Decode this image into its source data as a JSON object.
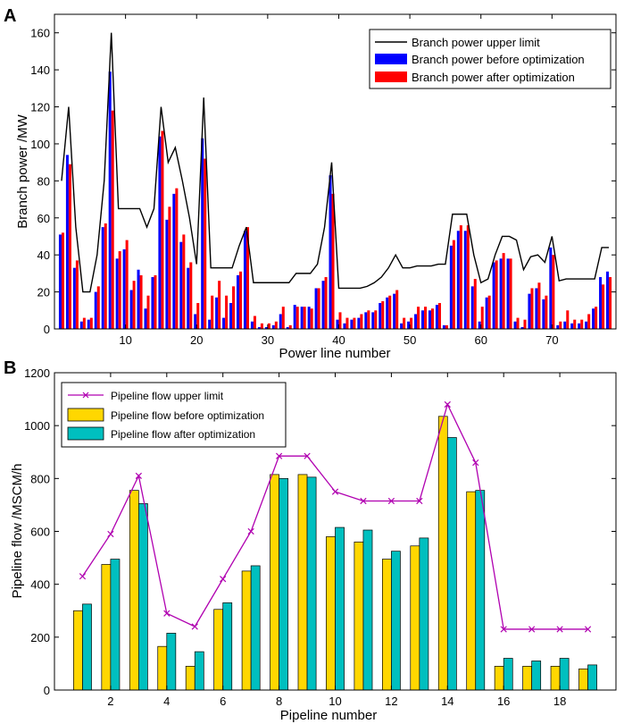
{
  "chart_data": [
    {
      "panel_label": "A",
      "type": "bar+line",
      "title": "",
      "xlabel": "Power line number",
      "ylabel": "Branch power /MW",
      "xlim": [
        0,
        79
      ],
      "ylim": [
        0,
        170
      ],
      "xticks": [
        10,
        20,
        30,
        40,
        50,
        60,
        70
      ],
      "yticks": [
        0,
        20,
        40,
        60,
        80,
        100,
        120,
        140,
        160
      ],
      "grid": false,
      "legend_position": "top-right",
      "legend": [
        {
          "label": "Branch power upper limit",
          "kind": "line",
          "color": "#000000"
        },
        {
          "label": "Branch power before optimization",
          "kind": "bar",
          "color": "#0000ff"
        },
        {
          "label": "Branch power after optimization",
          "kind": "bar",
          "color": "#ff0000"
        }
      ],
      "x": [
        1,
        2,
        3,
        4,
        5,
        6,
        7,
        8,
        9,
        10,
        11,
        12,
        13,
        14,
        15,
        16,
        17,
        18,
        19,
        20,
        21,
        22,
        23,
        24,
        25,
        26,
        27,
        28,
        29,
        30,
        31,
        32,
        33,
        34,
        35,
        36,
        37,
        38,
        39,
        40,
        41,
        42,
        43,
        44,
        45,
        46,
        47,
        48,
        49,
        50,
        51,
        52,
        53,
        54,
        55,
        56,
        57,
        58,
        59,
        60,
        61,
        62,
        63,
        64,
        65,
        66,
        67,
        68,
        69,
        70,
        71,
        72,
        73,
        74,
        75,
        76,
        77,
        78
      ],
      "series": [
        {
          "name": "Branch power upper limit",
          "kind": "line",
          "color": "#000000",
          "values": [
            80,
            120,
            55,
            20,
            20,
            40,
            80,
            160,
            65,
            65,
            65,
            65,
            55,
            65,
            120,
            90,
            98,
            80,
            60,
            35,
            125,
            33,
            33,
            33,
            33,
            45,
            55,
            25,
            25,
            25,
            25,
            25,
            25,
            30,
            30,
            30,
            35,
            55,
            90,
            22,
            22,
            22,
            22,
            23,
            25,
            28,
            33,
            40,
            33,
            33,
            34,
            34,
            34,
            35,
            35,
            62,
            62,
            62,
            40,
            25,
            27,
            40,
            50,
            50,
            48,
            32,
            39,
            40,
            36,
            50,
            26,
            27,
            27,
            27,
            27,
            27,
            44,
            44
          ]
        },
        {
          "name": "Branch power before optimization",
          "kind": "bar",
          "color": "#0000ff",
          "values": [
            51,
            94,
            33,
            4,
            5,
            20,
            55,
            139,
            38,
            43,
            21,
            32,
            11,
            28,
            104,
            59,
            73,
            47,
            33,
            8,
            103,
            5,
            17,
            6,
            14,
            29,
            53,
            4,
            1,
            1,
            2,
            8,
            1,
            13,
            12,
            12,
            22,
            26,
            83,
            5,
            3,
            5,
            6,
            9,
            9,
            14,
            17,
            19,
            3,
            4,
            8,
            10,
            10,
            13,
            2,
            45,
            53,
            53,
            23,
            4,
            17,
            36,
            38,
            38,
            4,
            1,
            19,
            22,
            16,
            44,
            2,
            4,
            3,
            3,
            4,
            11,
            28,
            31
          ]
        },
        {
          "name": "Branch power after optimization",
          "kind": "bar",
          "color": "#ff0000",
          "values": [
            52,
            89,
            37,
            6,
            6,
            23,
            57,
            118,
            42,
            48,
            26,
            29,
            18,
            29,
            107,
            66,
            76,
            51,
            36,
            14,
            92,
            18,
            26,
            18,
            23,
            31,
            55,
            7,
            3,
            3,
            4,
            12,
            2,
            12,
            12,
            11,
            22,
            28,
            73,
            9,
            6,
            6,
            8,
            10,
            10,
            15,
            18,
            21,
            6,
            6,
            12,
            12,
            11,
            14,
            2,
            48,
            56,
            56,
            27,
            12,
            18,
            37,
            41,
            38,
            6,
            5,
            22,
            25,
            18,
            40,
            4,
            10,
            5,
            5,
            8,
            12,
            24,
            28
          ]
        }
      ]
    },
    {
      "panel_label": "B",
      "type": "bar+line",
      "title": "",
      "xlabel": "Pipeline number",
      "ylabel": "Pipeline flow /MSCM/h",
      "xlim": [
        0,
        20
      ],
      "ylim": [
        0,
        1200
      ],
      "xticks": [
        2,
        4,
        6,
        8,
        10,
        12,
        14,
        16,
        18
      ],
      "yticks": [
        0,
        200,
        400,
        600,
        800,
        1000,
        1200
      ],
      "grid": false,
      "legend_position": "top-left",
      "legend": [
        {
          "label": "Pipeline flow upper limit",
          "kind": "line-marker",
          "color": "#b000b0"
        },
        {
          "label": "Pipeline flow before optimization",
          "kind": "bar",
          "color": "#ffd700"
        },
        {
          "label": "Pipeline flow after optimization",
          "kind": "bar",
          "color": "#00bfbf"
        }
      ],
      "x": [
        1,
        2,
        3,
        4,
        5,
        6,
        7,
        8,
        9,
        10,
        11,
        12,
        13,
        14,
        15,
        16,
        17,
        18,
        19
      ],
      "series": [
        {
          "name": "Pipeline flow upper limit",
          "kind": "line",
          "color": "#b000b0",
          "values": [
            430,
            590,
            810,
            290,
            240,
            420,
            600,
            885,
            885,
            750,
            715,
            715,
            715,
            1080,
            860,
            230,
            230,
            230,
            230
          ]
        },
        {
          "name": "Pipeline flow before optimization",
          "kind": "bar",
          "color": "#ffd700",
          "values": [
            300,
            475,
            755,
            165,
            90,
            305,
            450,
            815,
            815,
            580,
            560,
            495,
            545,
            1035,
            750,
            90,
            90,
            90,
            80
          ]
        },
        {
          "name": "Pipeline flow after optimization",
          "kind": "bar",
          "color": "#00bfbf",
          "values": [
            325,
            495,
            705,
            215,
            145,
            330,
            470,
            800,
            805,
            615,
            605,
            525,
            575,
            955,
            755,
            120,
            110,
            120,
            95
          ]
        }
      ]
    }
  ]
}
